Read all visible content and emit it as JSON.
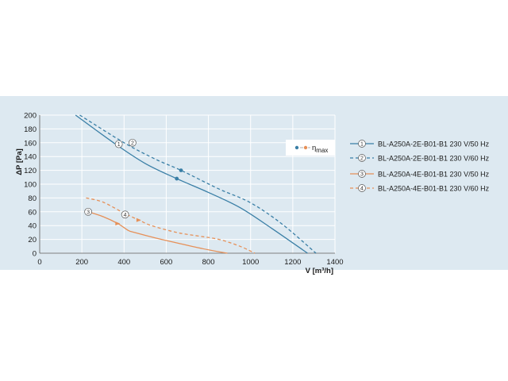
{
  "chart_data": {
    "type": "line",
    "xlabel": "V [m³/h]",
    "ylabel": "ΔP [Pa]",
    "xlim": [
      0,
      1400
    ],
    "ylim": [
      0,
      200
    ],
    "xticks": [
      0,
      200,
      400,
      600,
      800,
      1000,
      1200,
      1400
    ],
    "yticks": [
      0,
      20,
      40,
      60,
      80,
      100,
      120,
      140,
      160,
      180,
      200
    ],
    "grid": true,
    "legend_position": "right",
    "eta_legend": {
      "symbol": "η",
      "subscript": "max"
    },
    "series": [
      {
        "name": "BL-A250A-2E-B01-B1 230 V/50 Hz",
        "marker_label": "1",
        "color": "#3a7fa6",
        "dash": false,
        "x": [
          170,
          350,
          500,
          650,
          800,
          950,
          1100,
          1270
        ],
        "y": [
          200,
          160,
          130,
          108,
          88,
          66,
          36,
          0
        ],
        "eta_point": {
          "x": 650,
          "y": 108
        },
        "label_at": {
          "x": 375,
          "y": 158
        }
      },
      {
        "name": "BL-A250A-2E-B01-B1 230 V/60 Hz",
        "marker_label": "2",
        "color": "#3a7fa6",
        "dash": true,
        "x": [
          190,
          400,
          550,
          670,
          850,
          1000,
          1150,
          1310
        ],
        "y": [
          200,
          160,
          136,
          120,
          93,
          73,
          42,
          0
        ],
        "eta_point": {
          "x": 670,
          "y": 120
        },
        "label_at": {
          "x": 440,
          "y": 160
        }
      },
      {
        "name": "BL-A250A-4E-B01-B1 230 V/50 Hz",
        "marker_label": "3",
        "color": "#e69058",
        "dash": false,
        "x": [
          230,
          300,
          370,
          420,
          450,
          550,
          650,
          750,
          850,
          890
        ],
        "y": [
          60,
          53,
          43,
          33,
          30,
          22,
          15,
          8,
          2,
          0
        ],
        "eta_point": {
          "x": 370,
          "y": 43
        },
        "label_at": {
          "x": 230,
          "y": 60
        }
      },
      {
        "name": "BL-A250A-4E-B01-B1 230 V/60 Hz",
        "marker_label": "4",
        "color": "#e69058",
        "dash": true,
        "x": [
          220,
          300,
          400,
          470,
          530,
          650,
          750,
          850,
          950,
          1020
        ],
        "y": [
          80,
          74,
          58,
          48,
          40,
          30,
          25,
          20,
          10,
          0
        ],
        "eta_point": {
          "x": 470,
          "y": 48
        },
        "label_at": {
          "x": 405,
          "y": 56
        }
      }
    ]
  }
}
